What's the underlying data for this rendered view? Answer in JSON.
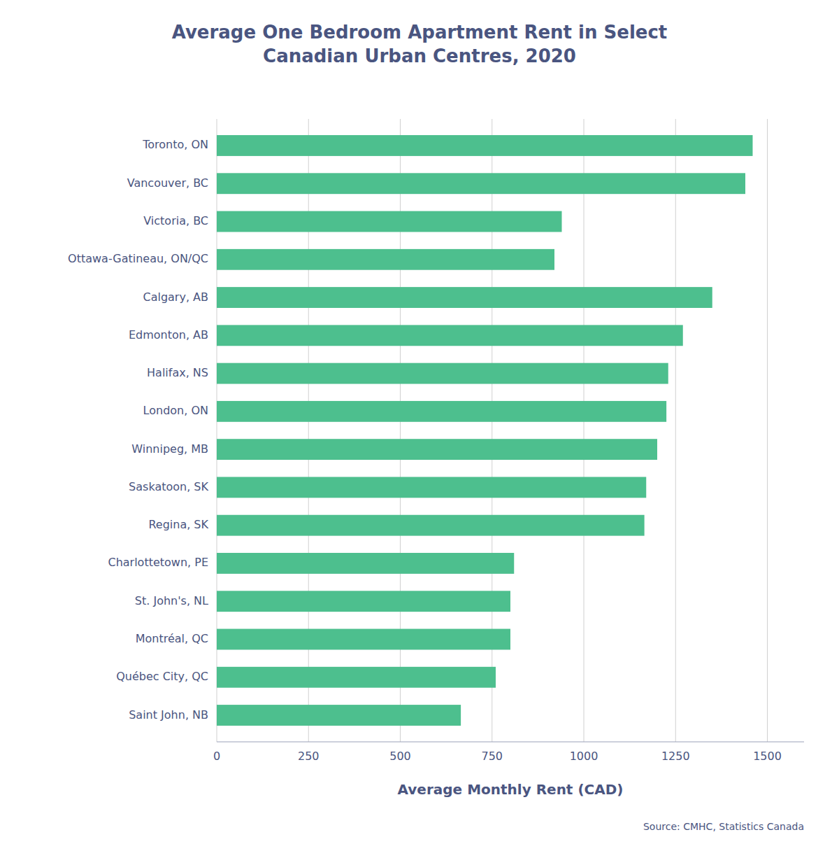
{
  "chart_data": {
    "type": "bar",
    "orientation": "horizontal",
    "title": "Average One Bedroom Apartment Rent in Select\nCanadian Urban Centres, 2020",
    "xlabel": "Average Monthly Rent (CAD)",
    "source": "Source: CMHC, Statistics Canada",
    "categories": [
      "Toronto, ON",
      "Vancouver, BC",
      "Victoria, BC",
      "Ottawa-Gatineau, ON/QC",
      "Calgary, AB",
      "Edmonton, AB",
      "Halifax, NS",
      "London, ON",
      "Winnipeg, MB",
      "Saskatoon, SK",
      "Regina, SK",
      "Charlottetown, PE",
      "St. John's, NL",
      "Montréal, QC",
      "Québec City, QC",
      "Saint John, NB"
    ],
    "values": [
      1460,
      1440,
      940,
      920,
      1350,
      1270,
      1230,
      1225,
      1200,
      1170,
      1165,
      810,
      800,
      800,
      760,
      665
    ],
    "color": "#4dbf8e",
    "xlim": [
      0,
      1600
    ],
    "xticks": [
      0,
      250,
      500,
      750,
      1000,
      1250,
      1500
    ],
    "grid": true
  }
}
